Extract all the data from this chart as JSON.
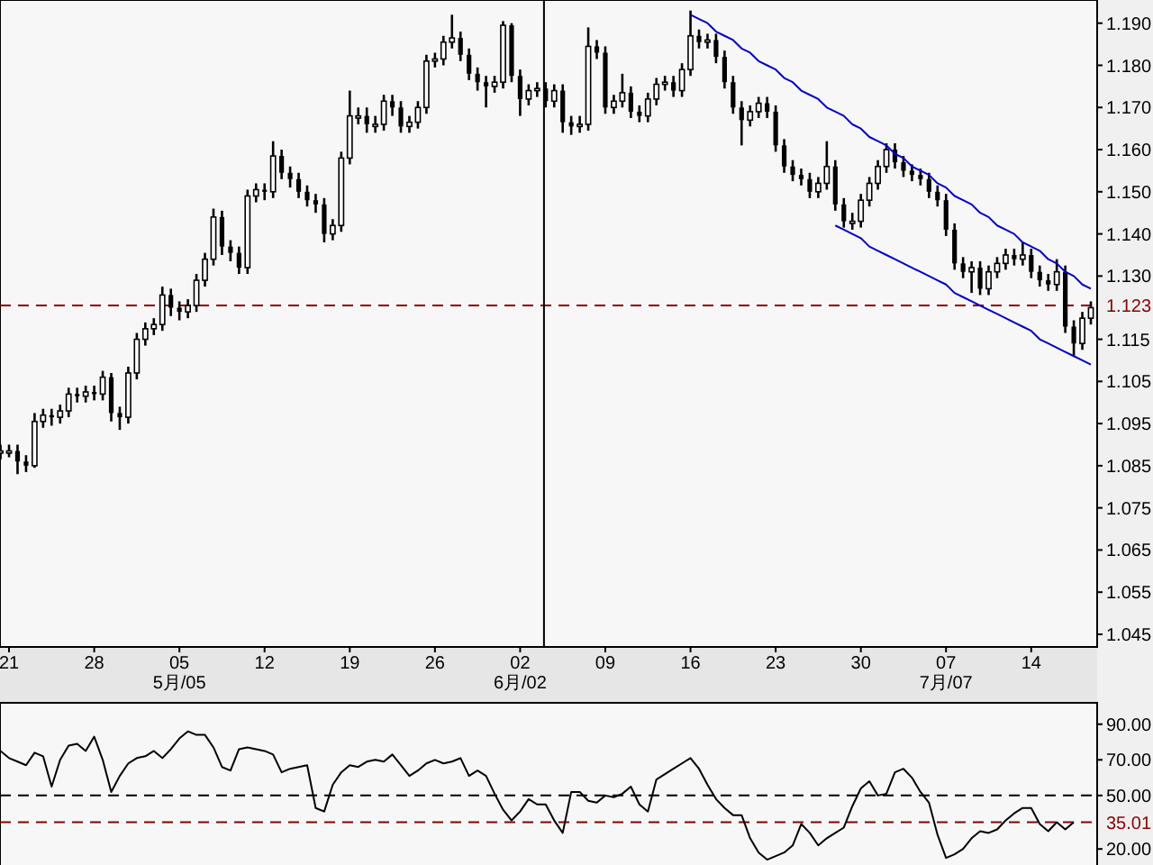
{
  "chart_data": [
    {
      "type": "candlestick",
      "categories": [
        null,
        "21",
        null,
        null,
        null,
        null,
        null,
        null,
        null,
        null,
        null,
        "28",
        null,
        null,
        null,
        null,
        null,
        null,
        null,
        null,
        null,
        "05\n5月/05",
        null,
        null,
        null,
        null,
        null,
        null,
        null,
        null,
        null,
        "12",
        null,
        null,
        null,
        null,
        null,
        null,
        null,
        null,
        null,
        "19",
        null,
        null,
        null,
        null,
        null,
        null,
        null,
        null,
        null,
        "26",
        null,
        null,
        null,
        null,
        null,
        null,
        null,
        null,
        null,
        "02\n6月/02",
        null,
        null,
        null,
        null,
        null,
        null,
        null,
        null,
        null,
        "09",
        null,
        null,
        null,
        null,
        null,
        null,
        null,
        null,
        null,
        "16",
        null,
        null,
        null,
        null,
        null,
        null,
        null,
        null,
        null,
        "23",
        null,
        null,
        null,
        null,
        null,
        null,
        null,
        null,
        null,
        "30",
        null,
        null,
        null,
        null,
        null,
        null,
        null,
        null,
        null,
        "07\n7月/07",
        null,
        null,
        null,
        null,
        null,
        null,
        null,
        null,
        null,
        "14",
        null,
        null,
        null,
        null,
        null,
        null,
        null
      ],
      "ohlc": [
        [
          1.088,
          1.09,
          1.0865,
          1.0885
        ],
        [
          1.0885,
          1.09,
          1.087,
          1.0885
        ],
        [
          1.0885,
          1.09,
          1.083,
          1.086
        ],
        [
          1.086,
          1.0875,
          1.0835,
          1.085
        ],
        [
          1.085,
          1.0975,
          1.0845,
          1.0955
        ],
        [
          1.0955,
          1.0985,
          1.094,
          1.097
        ],
        [
          1.097,
          1.0985,
          1.0945,
          1.0965
        ],
        [
          1.0965,
          1.0995,
          1.095,
          1.098
        ],
        [
          1.098,
          1.1035,
          1.0965,
          1.102
        ],
        [
          1.102,
          1.1035,
          1.1,
          1.1015
        ],
        [
          1.1015,
          1.104,
          1.1,
          1.1025
        ],
        [
          1.1025,
          1.104,
          1.1005,
          1.102
        ],
        [
          1.102,
          1.1075,
          1.1005,
          1.106
        ],
        [
          1.106,
          1.107,
          1.0955,
          1.0975
        ],
        [
          1.0975,
          1.099,
          1.0935,
          1.0965
        ],
        [
          1.0965,
          1.1085,
          1.095,
          1.107
        ],
        [
          1.107,
          1.1165,
          1.1055,
          1.115
        ],
        [
          1.115,
          1.119,
          1.1135,
          1.1175
        ],
        [
          1.1175,
          1.12,
          1.116,
          1.1185
        ],
        [
          1.1185,
          1.1275,
          1.117,
          1.1255
        ],
        [
          1.1255,
          1.127,
          1.1205,
          1.1225
        ],
        [
          1.1225,
          1.124,
          1.1195,
          1.1215
        ],
        [
          1.1215,
          1.1245,
          1.12,
          1.123
        ],
        [
          1.123,
          1.1305,
          1.1215,
          1.129
        ],
        [
          1.129,
          1.1355,
          1.1275,
          1.134
        ],
        [
          1.134,
          1.146,
          1.1325,
          1.144
        ],
        [
          1.144,
          1.1455,
          1.135,
          1.137
        ],
        [
          1.137,
          1.1385,
          1.1335,
          1.1355
        ],
        [
          1.1355,
          1.137,
          1.1305,
          1.132
        ],
        [
          1.132,
          1.1505,
          1.1305,
          1.149
        ],
        [
          1.149,
          1.152,
          1.1475,
          1.1505
        ],
        [
          1.1505,
          1.152,
          1.148,
          1.15
        ],
        [
          1.15,
          1.162,
          1.1485,
          1.1585
        ],
        [
          1.1585,
          1.16,
          1.153,
          1.1545
        ],
        [
          1.1545,
          1.156,
          1.151,
          1.153
        ],
        [
          1.153,
          1.1545,
          1.1485,
          1.15
        ],
        [
          1.15,
          1.1515,
          1.1465,
          1.148
        ],
        [
          1.148,
          1.1495,
          1.145,
          1.147
        ],
        [
          1.147,
          1.1485,
          1.138,
          1.14
        ],
        [
          1.14,
          1.1435,
          1.1385,
          1.142
        ],
        [
          1.142,
          1.1595,
          1.1405,
          1.158
        ],
        [
          1.158,
          1.174,
          1.1565,
          1.168
        ],
        [
          1.168,
          1.17,
          1.166,
          1.168
        ],
        [
          1.168,
          1.17,
          1.164,
          1.166
        ],
        [
          1.166,
          1.168,
          1.164,
          1.166
        ],
        [
          1.166,
          1.173,
          1.1645,
          1.1715
        ],
        [
          1.1715,
          1.173,
          1.168,
          1.17
        ],
        [
          1.17,
          1.1715,
          1.164,
          1.1655
        ],
        [
          1.1655,
          1.168,
          1.164,
          1.1665
        ],
        [
          1.1665,
          1.1715,
          1.165,
          1.17
        ],
        [
          1.17,
          1.1825,
          1.1685,
          1.181
        ],
        [
          1.181,
          1.183,
          1.1795,
          1.1815
        ],
        [
          1.1815,
          1.187,
          1.18,
          1.1855
        ],
        [
          1.1855,
          1.192,
          1.184,
          1.1865
        ],
        [
          1.1865,
          1.188,
          1.181,
          1.1825
        ],
        [
          1.1825,
          1.184,
          1.1765,
          1.178
        ],
        [
          1.178,
          1.1795,
          1.174,
          1.176
        ],
        [
          1.176,
          1.1775,
          1.17,
          1.175
        ],
        [
          1.175,
          1.1775,
          1.1735,
          1.176
        ],
        [
          1.176,
          1.1905,
          1.1745,
          1.1895
        ],
        [
          1.1895,
          1.19,
          1.176,
          1.1775
        ],
        [
          1.1775,
          1.179,
          1.168,
          1.172
        ],
        [
          1.172,
          1.1755,
          1.1705,
          1.174
        ],
        [
          1.174,
          1.176,
          1.1725,
          1.1745
        ],
        [
          1.1745,
          1.176,
          1.17,
          1.1715
        ],
        [
          1.1715,
          1.1755,
          1.17,
          1.174
        ],
        [
          1.174,
          1.1755,
          1.164,
          1.1665
        ],
        [
          1.1665,
          1.168,
          1.1635,
          1.1655
        ],
        [
          1.1655,
          1.168,
          1.164,
          1.166
        ],
        [
          1.166,
          1.189,
          1.1645,
          1.1845
        ],
        [
          1.1845,
          1.186,
          1.1815,
          1.183
        ],
        [
          1.183,
          1.1845,
          1.1685,
          1.17
        ],
        [
          1.17,
          1.173,
          1.1685,
          1.1715
        ],
        [
          1.1715,
          1.178,
          1.17,
          1.1735
        ],
        [
          1.1735,
          1.175,
          1.1675,
          1.169
        ],
        [
          1.169,
          1.1705,
          1.1665,
          1.168
        ],
        [
          1.168,
          1.1735,
          1.1665,
          1.172
        ],
        [
          1.172,
          1.177,
          1.1705,
          1.1755
        ],
        [
          1.1755,
          1.1775,
          1.174,
          1.176
        ],
        [
          1.176,
          1.1775,
          1.1725,
          1.174
        ],
        [
          1.174,
          1.1805,
          1.1725,
          1.179
        ],
        [
          1.179,
          1.193,
          1.1775,
          1.187
        ],
        [
          1.187,
          1.1885,
          1.184,
          1.1855
        ],
        [
          1.1855,
          1.1875,
          1.184,
          1.186
        ],
        [
          1.186,
          1.1875,
          1.1805,
          1.182
        ],
        [
          1.182,
          1.1835,
          1.1745,
          1.176
        ],
        [
          1.176,
          1.1775,
          1.1685,
          1.17
        ],
        [
          1.17,
          1.1715,
          1.161,
          1.167
        ],
        [
          1.167,
          1.1705,
          1.1655,
          1.169
        ],
        [
          1.169,
          1.1725,
          1.1675,
          1.171
        ],
        [
          1.171,
          1.1725,
          1.1675,
          1.169
        ],
        [
          1.169,
          1.1705,
          1.1595,
          1.161
        ],
        [
          1.161,
          1.1625,
          1.1545,
          1.156
        ],
        [
          1.156,
          1.1575,
          1.1525,
          1.154
        ],
        [
          1.154,
          1.1555,
          1.1515,
          1.153
        ],
        [
          1.153,
          1.1545,
          1.1485,
          1.15
        ],
        [
          1.15,
          1.1535,
          1.1485,
          1.152
        ],
        [
          1.152,
          1.162,
          1.1505,
          1.156
        ],
        [
          1.156,
          1.1575,
          1.1455,
          1.147
        ],
        [
          1.147,
          1.1485,
          1.1415,
          1.143
        ],
        [
          1.143,
          1.145,
          1.141,
          1.143
        ],
        [
          1.143,
          1.1495,
          1.1415,
          1.148
        ],
        [
          1.148,
          1.1535,
          1.1465,
          1.152
        ],
        [
          1.152,
          1.1575,
          1.1505,
          1.156
        ],
        [
          1.156,
          1.1615,
          1.1545,
          1.16
        ],
        [
          1.16,
          1.1615,
          1.1555,
          1.157
        ],
        [
          1.157,
          1.1585,
          1.1535,
          1.155
        ],
        [
          1.155,
          1.1565,
          1.1525,
          1.154
        ],
        [
          1.154,
          1.1555,
          1.1515,
          1.153
        ],
        [
          1.153,
          1.1545,
          1.1485,
          1.15
        ],
        [
          1.15,
          1.1515,
          1.1465,
          1.148
        ],
        [
          1.148,
          1.1495,
          1.1395,
          1.141
        ],
        [
          1.141,
          1.1425,
          1.1315,
          1.133
        ],
        [
          1.133,
          1.1345,
          1.1295,
          1.131
        ],
        [
          1.131,
          1.1335,
          1.126,
          1.132
        ],
        [
          1.132,
          1.1335,
          1.1255,
          1.127
        ],
        [
          1.127,
          1.1325,
          1.1255,
          1.131
        ],
        [
          1.131,
          1.1345,
          1.1295,
          1.133
        ],
        [
          1.133,
          1.1365,
          1.1315,
          1.135
        ],
        [
          1.135,
          1.1365,
          1.1325,
          1.134
        ],
        [
          1.134,
          1.138,
          1.1325,
          1.135
        ],
        [
          1.135,
          1.1365,
          1.1295,
          1.131
        ],
        [
          1.131,
          1.1325,
          1.1275,
          1.129
        ],
        [
          1.129,
          1.1305,
          1.1265,
          1.128
        ],
        [
          1.128,
          1.134,
          1.1265,
          1.131
        ],
        [
          1.131,
          1.1325,
          1.1165,
          1.118
        ],
        [
          1.118,
          1.1195,
          1.111,
          1.114
        ],
        [
          1.114,
          1.1215,
          1.1125,
          1.12
        ],
        [
          1.12,
          1.124,
          1.1185,
          1.1225
        ]
      ],
      "series": [
        {
          "type": "line",
          "color": "#0000cc",
          "values": [
            null,
            null,
            null,
            null,
            null,
            null,
            null,
            null,
            null,
            null,
            null,
            null,
            null,
            null,
            null,
            null,
            null,
            null,
            null,
            null,
            null,
            null,
            null,
            null,
            null,
            null,
            null,
            null,
            null,
            null,
            null,
            null,
            null,
            null,
            null,
            null,
            null,
            null,
            null,
            null,
            null,
            null,
            null,
            null,
            null,
            null,
            null,
            null,
            null,
            null,
            null,
            null,
            null,
            null,
            null,
            null,
            null,
            null,
            null,
            null,
            null,
            null,
            null,
            null,
            null,
            null,
            null,
            null,
            null,
            null,
            null,
            null,
            null,
            null,
            null,
            null,
            null,
            null,
            null,
            null,
            null,
            1.192,
            1.191,
            1.19,
            1.188,
            1.187,
            1.186,
            1.184,
            1.183,
            1.181,
            1.18,
            1.179,
            1.177,
            1.176,
            1.174,
            1.173,
            1.172,
            1.17,
            1.169,
            1.168,
            1.166,
            1.165,
            1.163,
            1.162,
            1.161,
            1.159,
            1.158,
            1.156,
            1.155,
            1.154,
            1.152,
            1.151,
            1.149,
            1.148,
            1.147,
            1.145,
            1.144,
            1.142,
            1.141,
            1.14,
            1.138,
            1.137,
            1.136,
            1.134,
            1.133,
            1.131,
            1.13,
            1.128,
            1.127
          ]
        },
        {
          "type": "line",
          "color": "#0000cc",
          "values": [
            null,
            null,
            null,
            null,
            null,
            null,
            null,
            null,
            null,
            null,
            null,
            null,
            null,
            null,
            null,
            null,
            null,
            null,
            null,
            null,
            null,
            null,
            null,
            null,
            null,
            null,
            null,
            null,
            null,
            null,
            null,
            null,
            null,
            null,
            null,
            null,
            null,
            null,
            null,
            null,
            null,
            null,
            null,
            null,
            null,
            null,
            null,
            null,
            null,
            null,
            null,
            null,
            null,
            null,
            null,
            null,
            null,
            null,
            null,
            null,
            null,
            null,
            null,
            null,
            null,
            null,
            null,
            null,
            null,
            null,
            null,
            null,
            null,
            null,
            null,
            null,
            null,
            null,
            null,
            null,
            null,
            null,
            null,
            null,
            null,
            null,
            null,
            null,
            null,
            null,
            null,
            null,
            null,
            null,
            null,
            null,
            null,
            null,
            1.142,
            1.141,
            1.14,
            1.139,
            1.137,
            1.136,
            1.135,
            1.134,
            1.133,
            1.132,
            1.131,
            1.13,
            1.129,
            1.128,
            1.126,
            1.125,
            1.124,
            1.123,
            1.122,
            1.121,
            1.12,
            1.119,
            1.118,
            1.117,
            1.115,
            1.114,
            1.113,
            1.112,
            1.111,
            1.11,
            1.109
          ]
        }
      ],
      "ylim": [
        1.042,
        1.1955
      ],
      "yticks": [
        {
          "value": 1.045,
          "label": "1.045"
        },
        {
          "value": 1.055,
          "label": "1.055"
        },
        {
          "value": 1.065,
          "label": "1.065"
        },
        {
          "value": 1.075,
          "label": "1.075"
        },
        {
          "value": 1.085,
          "label": "1.085"
        },
        {
          "value": 1.095,
          "label": "1.095"
        },
        {
          "value": 1.105,
          "label": "1.105"
        },
        {
          "value": 1.115,
          "label": "1.115"
        },
        {
          "value": 1.13,
          "label": "1.130"
        },
        {
          "value": 1.14,
          "label": "1.140"
        },
        {
          "value": 1.15,
          "label": "1.150"
        },
        {
          "value": 1.16,
          "label": "1.160"
        },
        {
          "value": 1.17,
          "label": "1.170"
        },
        {
          "value": 1.18,
          "label": "1.180"
        },
        {
          "value": 1.19,
          "label": "1.190"
        }
      ],
      "ref_lines": [
        {
          "axis": "y",
          "value": 1.123,
          "label": "1.123",
          "color": "#8b0000",
          "line_style": "dashed"
        }
      ]
    },
    {
      "type": "line",
      "categories": [
        null,
        null,
        null,
        null,
        null,
        null,
        null,
        null,
        null,
        null,
        null,
        null,
        null,
        null,
        null,
        null,
        null,
        null,
        null,
        null,
        null,
        null,
        null,
        null,
        null,
        null,
        null,
        null,
        null,
        null,
        null,
        null,
        null,
        null,
        null,
        null,
        null,
        null,
        null,
        null,
        null,
        null,
        null,
        null,
        null,
        null,
        null,
        null,
        null,
        null,
        null,
        null,
        null,
        null,
        null,
        null,
        null,
        null,
        null,
        null,
        null,
        null,
        null,
        null,
        null,
        null,
        null,
        null,
        null,
        null,
        null,
        null,
        null,
        null,
        null,
        null,
        null,
        null,
        null,
        null,
        null,
        null,
        null,
        null,
        null,
        null,
        null,
        null,
        null,
        null,
        null,
        null,
        null,
        null,
        null,
        null,
        null,
        null,
        null,
        null,
        null,
        null,
        null,
        null,
        null,
        null,
        null,
        null,
        null,
        null,
        null,
        null,
        null,
        null,
        null,
        null,
        null,
        null,
        null,
        null,
        null,
        null,
        null,
        null,
        null,
        null,
        null,
        null,
        null
      ],
      "series": [
        {
          "color": "#000000",
          "values": [
            75,
            71,
            69,
            67,
            74,
            72,
            55,
            70,
            78,
            79,
            75,
            83,
            70,
            52,
            61,
            68,
            71,
            72,
            75,
            71,
            76,
            82,
            86,
            84,
            84,
            77,
            66,
            64,
            76,
            77,
            76,
            75,
            73,
            63,
            65,
            66,
            67,
            43,
            41,
            56,
            63,
            67,
            66,
            69,
            70,
            69,
            73,
            67,
            61,
            64,
            68,
            70,
            68,
            69,
            71,
            61,
            64,
            61,
            51,
            42,
            36,
            41,
            48,
            45,
            45,
            36,
            29,
            52,
            52,
            47,
            46,
            50,
            49,
            51,
            55,
            45,
            41,
            59,
            62,
            65,
            68,
            71,
            65,
            56,
            48,
            43,
            39,
            39,
            26,
            18,
            14,
            16,
            18,
            22,
            34,
            29,
            22,
            26,
            29,
            32,
            44,
            54,
            58,
            50,
            51,
            63,
            65,
            60,
            52,
            46,
            28,
            15,
            17,
            20,
            26,
            30,
            29,
            31,
            36,
            40,
            43,
            43,
            34,
            30,
            35,
            31,
            35,
            null,
            null
          ]
        }
      ],
      "ylim": [
        10,
        102
      ],
      "yticks": [
        {
          "value": 20,
          "label": "20.00"
        },
        {
          "value": 50,
          "label": "50.00"
        },
        {
          "value": 70,
          "label": "70.00"
        },
        {
          "value": 90,
          "label": "90.00"
        }
      ],
      "ref_lines": [
        {
          "axis": "y",
          "value": 50,
          "color": "#000000",
          "line_style": "dashed"
        },
        {
          "axis": "y",
          "value": 35.01,
          "label": "35.01",
          "color": "#8b0000",
          "line_style": "dashed"
        }
      ],
      "grid": false
    }
  ]
}
